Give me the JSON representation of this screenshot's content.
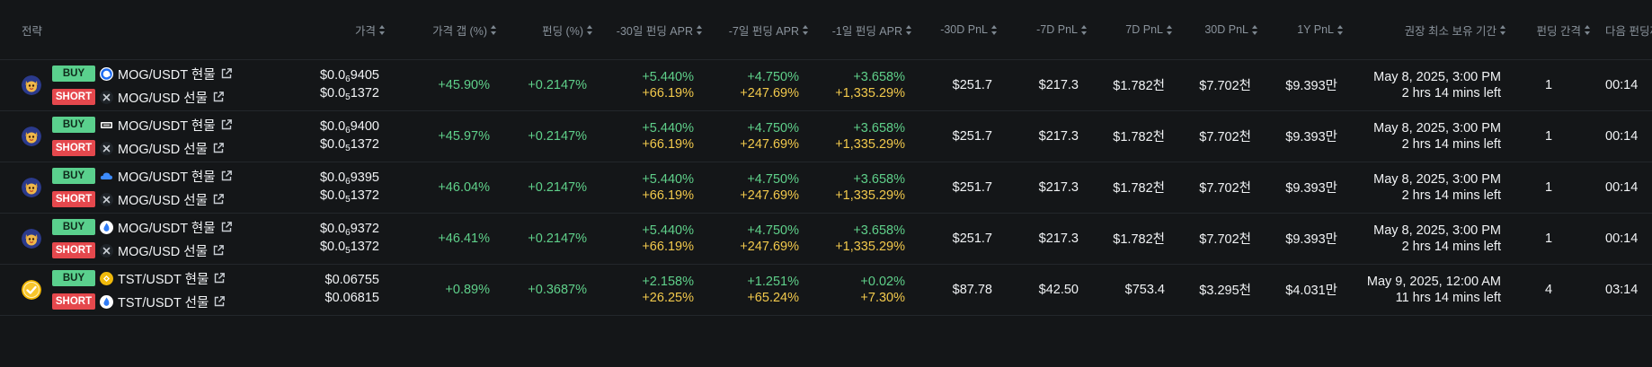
{
  "colors": {
    "background": "#141618",
    "header_text": "#8a939c",
    "positive": "#5fd08a",
    "highlight": "#f2c94c",
    "buy_badge": "#5ad08d",
    "short_badge": "#e5484d"
  },
  "header": {
    "strategy": "전략",
    "price": "가격",
    "price_gap": "가격 갭 (%)",
    "funding": "펀딩 (%)",
    "apr_30": "-30일 펀딩 APR",
    "apr_7": "-7일 펀딩 APR",
    "apr_1": "-1일 펀딩 APR",
    "pnl_m30": "-30D PnL",
    "pnl_m7": "-7D PnL",
    "pnl_7": "7D PnL",
    "pnl_30": "30D PnL",
    "pnl_1y": "1Y PnL",
    "hold": "권장 최소 보유 기간",
    "interval": "펀딩 간격",
    "next": "다음 펀딩까"
  },
  "rows": [
    {
      "token_icon": "mog-cat-icon",
      "buy_label": "BUY",
      "buy_pair": "MOG/USDT 현물",
      "buy_exchange_icon": "blue-circle-exchange-icon",
      "short_label": "SHORT",
      "short_pair": "MOG/USD 선물",
      "short_exchange_icon": "x-exchange-icon",
      "price1_pre": "$0.0",
      "price1_sub": "6",
      "price1_post": "9405",
      "price2_pre": "$0.0",
      "price2_sub": "5",
      "price2_post": "1372",
      "gap": "+45.90%",
      "funding": "+0.2147%",
      "apr30_a": "+5.440%",
      "apr30_b": "+66.19%",
      "apr7_a": "+4.750%",
      "apr7_b": "+247.69%",
      "apr1_a": "+3.658%",
      "apr1_b": "+1,335.29%",
      "pnl_m30": "$251.7",
      "pnl_m7": "$217.3",
      "pnl_7": "$1.782천",
      "pnl_30": "$7.702천",
      "pnl_1y": "$9.393만",
      "hold_date": "May 8, 2025, 3:00 PM",
      "hold_left": "2 hrs 14 mins left",
      "interval": "1",
      "next": "00:14"
    },
    {
      "token_icon": "mog-cat-icon",
      "buy_label": "BUY",
      "buy_pair": "MOG/USDT 현물",
      "buy_exchange_icon": "dark-flag-exchange-icon",
      "short_label": "SHORT",
      "short_pair": "MOG/USD 선물",
      "short_exchange_icon": "x-exchange-icon",
      "price1_pre": "$0.0",
      "price1_sub": "6",
      "price1_post": "9400",
      "price2_pre": "$0.0",
      "price2_sub": "5",
      "price2_post": "1372",
      "gap": "+45.97%",
      "funding": "+0.2147%",
      "apr30_a": "+5.440%",
      "apr30_b": "+66.19%",
      "apr7_a": "+4.750%",
      "apr7_b": "+247.69%",
      "apr1_a": "+3.658%",
      "apr1_b": "+1,335.29%",
      "pnl_m30": "$251.7",
      "pnl_m7": "$217.3",
      "pnl_7": "$1.782천",
      "pnl_30": "$7.702천",
      "pnl_1y": "$9.393만",
      "hold_date": "May 8, 2025, 3:00 PM",
      "hold_left": "2 hrs 14 mins left",
      "interval": "1",
      "next": "00:14"
    },
    {
      "token_icon": "mog-cat-icon",
      "buy_label": "BUY",
      "buy_pair": "MOG/USDT 현물",
      "buy_exchange_icon": "blue-cloud-exchange-icon",
      "short_label": "SHORT",
      "short_pair": "MOG/USD 선물",
      "short_exchange_icon": "x-exchange-icon",
      "price1_pre": "$0.0",
      "price1_sub": "6",
      "price1_post": "9395",
      "price2_pre": "$0.0",
      "price2_sub": "5",
      "price2_post": "1372",
      "gap": "+46.04%",
      "funding": "+0.2147%",
      "apr30_a": "+5.440%",
      "apr30_b": "+66.19%",
      "apr7_a": "+4.750%",
      "apr7_b": "+247.69%",
      "apr1_a": "+3.658%",
      "apr1_b": "+1,335.29%",
      "pnl_m30": "$251.7",
      "pnl_m7": "$217.3",
      "pnl_7": "$1.782천",
      "pnl_30": "$7.702천",
      "pnl_1y": "$9.393만",
      "hold_date": "May 8, 2025, 3:00 PM",
      "hold_left": "2 hrs 14 mins left",
      "interval": "1",
      "next": "00:14"
    },
    {
      "token_icon": "mog-cat-icon",
      "buy_label": "BUY",
      "buy_pair": "MOG/USDT 현물",
      "buy_exchange_icon": "blue-drop-exchange-icon",
      "short_label": "SHORT",
      "short_pair": "MOG/USD 선물",
      "short_exchange_icon": "x-exchange-icon",
      "price1_pre": "$0.0",
      "price1_sub": "6",
      "price1_post": "9372",
      "price2_pre": "$0.0",
      "price2_sub": "5",
      "price2_post": "1372",
      "gap": "+46.41%",
      "funding": "+0.2147%",
      "apr30_a": "+5.440%",
      "apr30_b": "+66.19%",
      "apr7_a": "+4.750%",
      "apr7_b": "+247.69%",
      "apr1_a": "+3.658%",
      "apr1_b": "+1,335.29%",
      "pnl_m30": "$251.7",
      "pnl_m7": "$217.3",
      "pnl_7": "$1.782천",
      "pnl_30": "$7.702천",
      "pnl_1y": "$9.393만",
      "hold_date": "May 8, 2025, 3:00 PM",
      "hold_left": "2 hrs 14 mins left",
      "interval": "1",
      "next": "00:14"
    },
    {
      "token_icon": "tst-check-icon",
      "buy_label": "BUY",
      "buy_pair": "TST/USDT 현물",
      "buy_exchange_icon": "yellow-coin-exchange-icon",
      "short_label": "SHORT",
      "short_pair": "TST/USDT 선물",
      "short_exchange_icon": "blue-drop-exchange-icon",
      "price1_pre": "$0.06755",
      "price1_sub": "",
      "price1_post": "",
      "price2_pre": "$0.06815",
      "price2_sub": "",
      "price2_post": "",
      "gap": "+0.89%",
      "funding": "+0.3687%",
      "apr30_a": "+2.158%",
      "apr30_b": "+26.25%",
      "apr7_a": "+1.251%",
      "apr7_b": "+65.24%",
      "apr1_a": "+0.02%",
      "apr1_b": "+7.30%",
      "pnl_m30": "$87.78",
      "pnl_m7": "$42.50",
      "pnl_7": "$753.4",
      "pnl_30": "$3.295천",
      "pnl_1y": "$4.031만",
      "hold_date": "May 9, 2025, 12:00 AM",
      "hold_left": "11 hrs 14 mins left",
      "interval": "4",
      "next": "03:14"
    }
  ]
}
